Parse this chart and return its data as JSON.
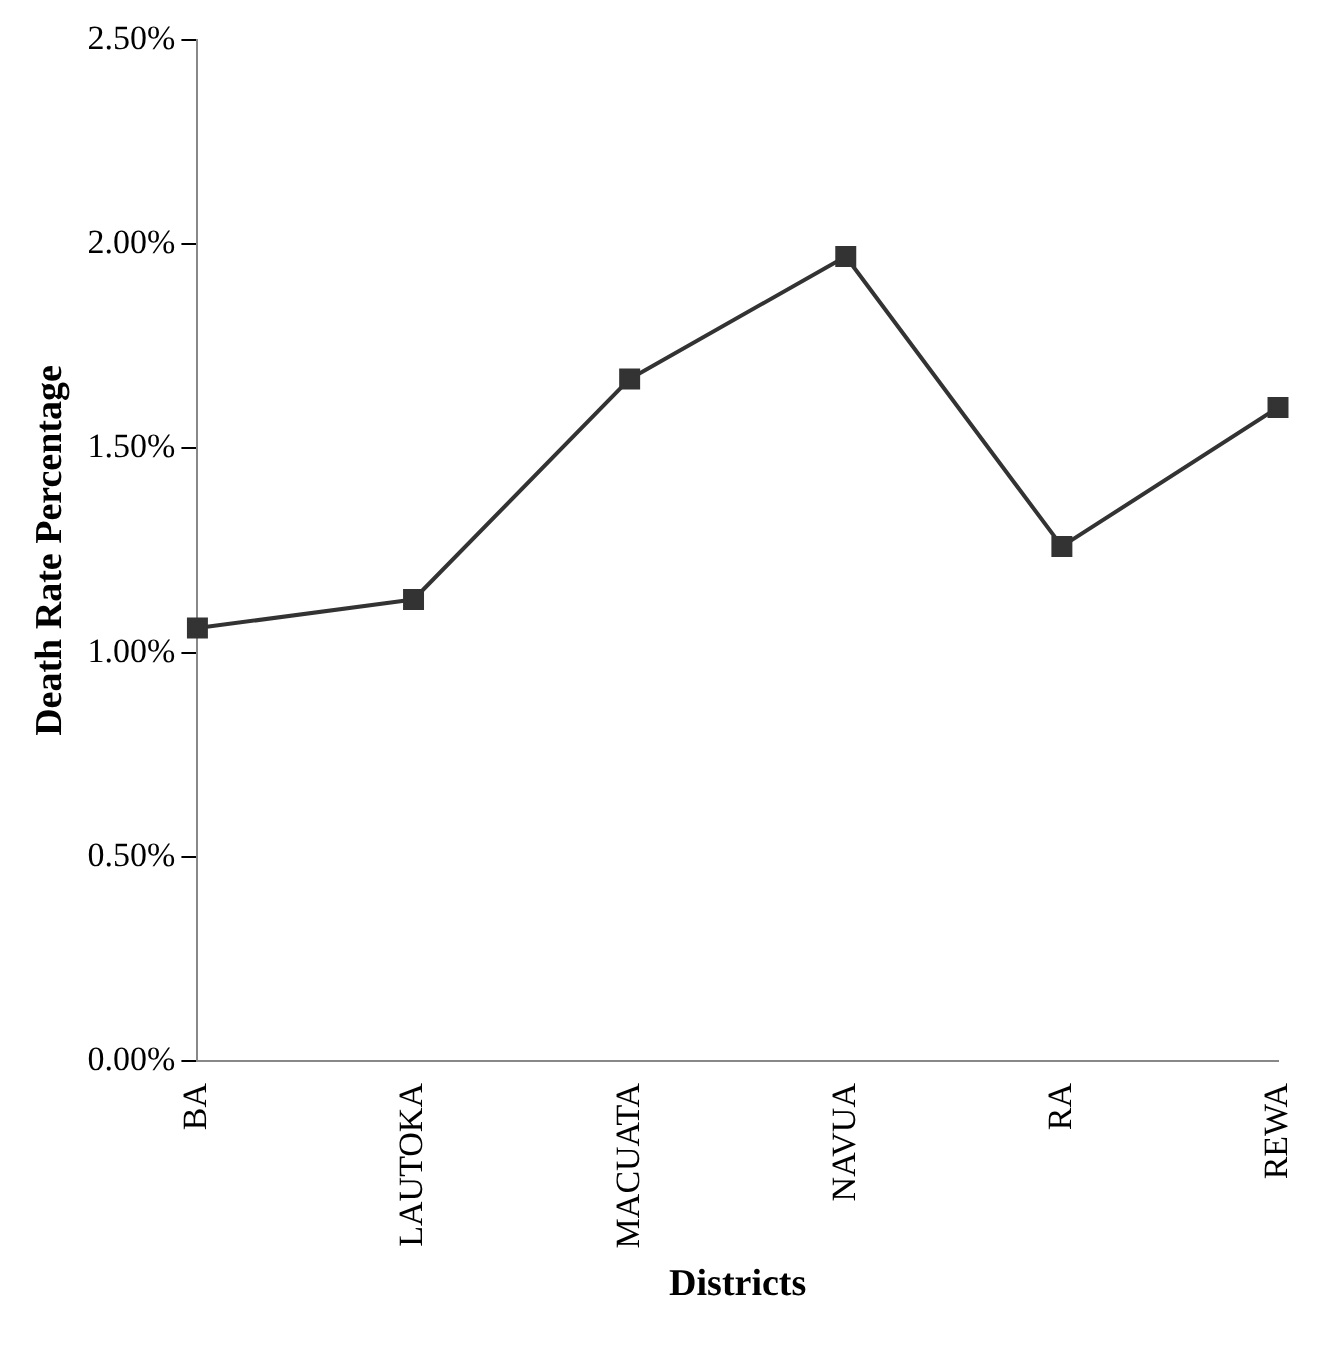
{
  "chart_data": {
    "type": "line",
    "xlabel": "Districts",
    "ylabel": "Death Rate Percentage",
    "categories": [
      "BA",
      "LAUTOKA",
      "MACUATA",
      "NAVUA",
      "RA",
      "REWA"
    ],
    "series": [
      {
        "color": "#333333",
        "values": [
          1.06,
          1.13,
          1.67,
          1.97,
          1.26,
          1.6
        ]
      }
    ],
    "ylim": [
      0,
      2.5
    ],
    "yticks": [
      {
        "value": 0,
        "label": "0.00%"
      },
      {
        "value": 0.5,
        "label": "0.50%"
      },
      {
        "value": 1,
        "label": "1.00%"
      },
      {
        "value": 1.5,
        "label": "1.50%"
      },
      {
        "value": 2,
        "label": "2.00%"
      },
      {
        "value": 2.5,
        "label": "2.50%"
      }
    ],
    "grid": false,
    "legend": false,
    "marker": "square",
    "line_style": "solid"
  }
}
